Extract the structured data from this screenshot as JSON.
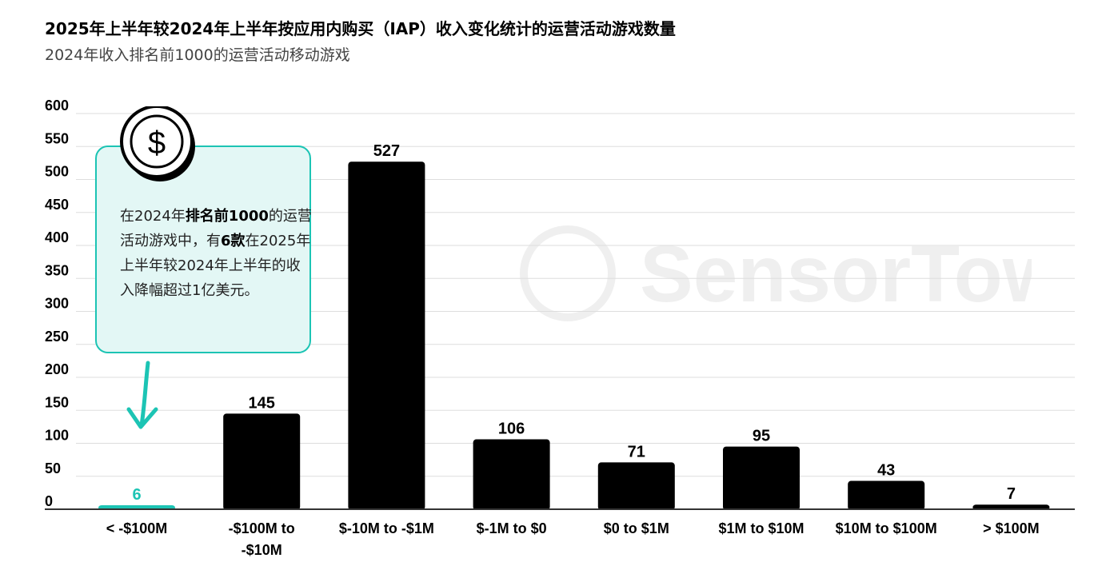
{
  "header": {
    "title": "2025年上半年较2024年上半年按应用内购买（IAP）收入变化统计的运营活动游戏数量",
    "subtitle": "2024年收入排名前1000的运营活动移动游戏"
  },
  "callout": {
    "part1": "在2024年",
    "bold1": "排名前1000",
    "part2": "的运营活动游戏中，有",
    "bold2": "6款",
    "part3": "在2025年上半年较2024年上半年的收入降幅超过1亿美元。"
  },
  "watermark": {
    "text": "SensorTower"
  },
  "colors": {
    "bar": "#000000",
    "highlight": "#1cc4b4",
    "grid": "#dddddd",
    "axis": "#333333"
  },
  "chart_data": {
    "type": "bar",
    "title": "2025年上半年较2024年上半年按应用内购买（IAP）收入变化统计的运营活动游戏数量",
    "subtitle": "2024年收入排名前1000的运营活动移动游戏",
    "categories": [
      [
        "< -$100M"
      ],
      [
        "-$100M to",
        "-$10M"
      ],
      [
        "$-10M to -$1M"
      ],
      [
        "$-1M to $0"
      ],
      [
        "$0 to $1M"
      ],
      [
        "$1M to $10M"
      ],
      [
        "$10M to $100M"
      ],
      [
        "> $100M"
      ]
    ],
    "values": [
      6,
      145,
      527,
      106,
      71,
      95,
      43,
      7
    ],
    "highlight_index": 0,
    "yticks": [
      0,
      50,
      100,
      150,
      200,
      250,
      300,
      350,
      400,
      450,
      500,
      550,
      600
    ],
    "ylim": [
      0,
      600
    ],
    "xlabel": "",
    "ylabel": "",
    "grid": true
  }
}
